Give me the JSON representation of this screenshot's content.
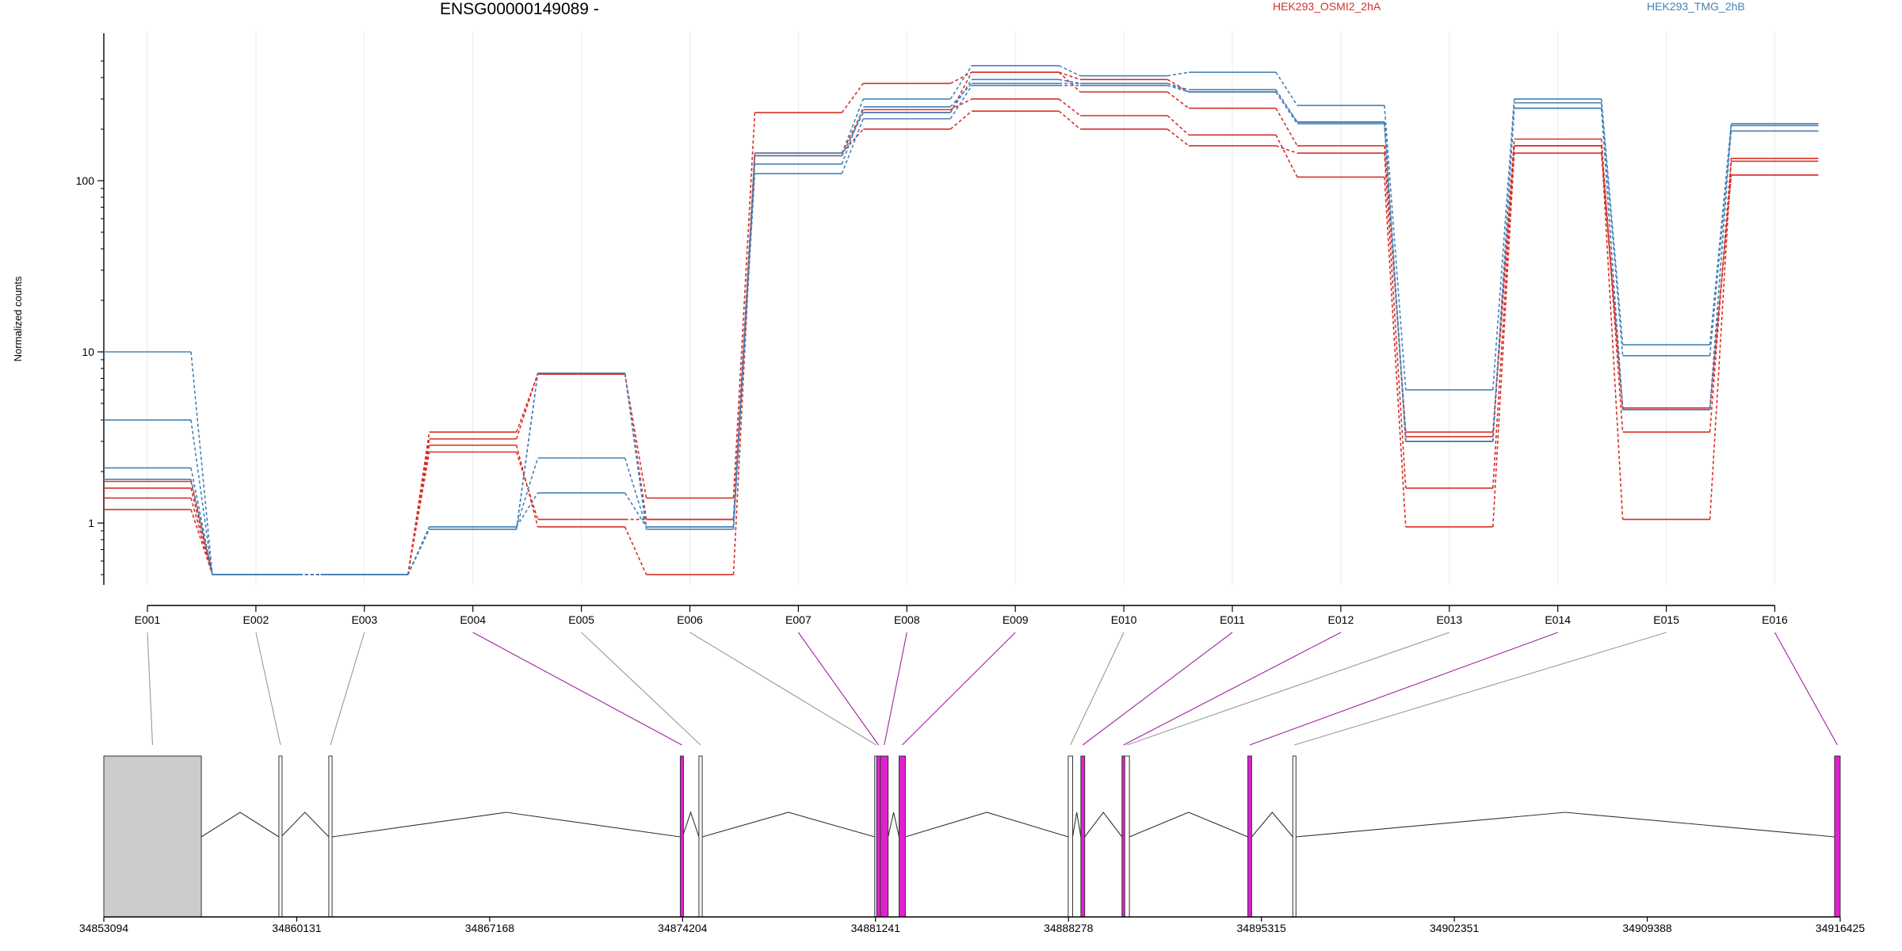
{
  "title": "ENSG00000149089 -",
  "colors": {
    "HEK293_OSMI2_2hA": "#d73027",
    "HEK293_TMG_2hB": "#4682b4",
    "exon_highlight": "#e020d0",
    "exon_plain": "#ffffff",
    "utr_fill": "#cccccc"
  },
  "chart_data": {
    "type": "line",
    "title": "ENSG00000149089 -",
    "ylabel": "Normalized counts",
    "yscale": "log",
    "yticks": [
      1,
      10,
      100
    ],
    "ytick_labels": [
      "1",
      "10",
      "100"
    ],
    "categories": [
      "E001",
      "E002",
      "E003",
      "E004",
      "E005",
      "E006",
      "E007",
      "E008",
      "E009",
      "E010",
      "E011",
      "E012",
      "E013",
      "E014",
      "E015",
      "E016"
    ],
    "legend": [
      "HEK293_OSMI2_2hA",
      "HEK293_TMG_2hB"
    ],
    "legend_position": "top",
    "grid": "vertical",
    "series": [
      {
        "name": "HEK293_OSMI2_2hA",
        "values": [
          1.4,
          0.5,
          0.5,
          3.4,
          7.4,
          1.4,
          250,
          370,
          430,
          330,
          265,
          160,
          3.4,
          175,
          3.4,
          135
        ]
      },
      {
        "name": "HEK293_OSMI2_2hA",
        "values": [
          1.6,
          0.5,
          0.5,
          3.1,
          7.5,
          1.05,
          145,
          200,
          255,
          200,
          160,
          145,
          1.6,
          160,
          1.05,
          130
        ]
      },
      {
        "name": "HEK293_OSMI2_2hA",
        "values": [
          1.75,
          0.5,
          0.5,
          2.85,
          0.95,
          0.5,
          145,
          260,
          300,
          240,
          185,
          105,
          0.95,
          145,
          4.6,
          108
        ]
      },
      {
        "name": "HEK293_OSMI2_2hA",
        "values": [
          1.2,
          0.5,
          0.5,
          2.6,
          1.05,
          1.05,
          140,
          250,
          430,
          390,
          330,
          220,
          3.2,
          160,
          4.7,
          108
        ]
      },
      {
        "name": "HEK293_TMG_2hB",
        "values": [
          10,
          0.5,
          0.5,
          0.95,
          2.4,
          0.95,
          145,
          300,
          470,
          410,
          430,
          275,
          6,
          300,
          11,
          215
        ]
      },
      {
        "name": "HEK293_TMG_2hB",
        "values": [
          4,
          0.5,
          0.5,
          0.95,
          1.5,
          0.95,
          125,
          270,
          370,
          370,
          340,
          220,
          3.0,
          285,
          9.5,
          195
        ]
      },
      {
        "name": "HEK293_TMG_2hB",
        "values": [
          2.1,
          0.5,
          0.5,
          0.92,
          7.5,
          0.92,
          110,
          230,
          360,
          360,
          330,
          215,
          3.0,
          265,
          4.6,
          210
        ]
      },
      {
        "name": "HEK293_TMG_2hB",
        "values": [
          1.8,
          0.5,
          0.5,
          0.92,
          7.5,
          0.95,
          140,
          250,
          390,
          370,
          330,
          220,
          3.0,
          265,
          4.6,
          215
        ]
      }
    ],
    "genomic_axis": {
      "ticks": [
        34853094,
        34860131,
        34867168,
        34874204,
        34881241,
        34888278,
        34895315,
        34902351,
        34909388,
        34916425
      ],
      "tick_labels": [
        "34853094",
        "34860131",
        "34867168",
        "34874204",
        "34881241",
        "34888278",
        "34895315",
        "34902351",
        "34909388",
        "34916425"
      ],
      "range": [
        34853094,
        34916425
      ]
    },
    "exons": [
      {
        "id": "E001",
        "start": 34853094,
        "end": 34856650,
        "style": "utr"
      },
      {
        "id": "E002",
        "start": 34859480,
        "end": 34859560,
        "style": "plain"
      },
      {
        "id": "E003",
        "start": 34861300,
        "end": 34861420,
        "style": "plain"
      },
      {
        "id": "E004",
        "start": 34874120,
        "end": 34874200,
        "style": "highlight"
      },
      {
        "id": "E005",
        "start": 34874800,
        "end": 34874920,
        "style": "plain"
      },
      {
        "id": "E006",
        "start": 34881210,
        "end": 34881280,
        "style": "plain"
      },
      {
        "id": "E007",
        "start": 34881280,
        "end": 34881420,
        "style": "highlight"
      },
      {
        "id": "E008",
        "start": 34881420,
        "end": 34881700,
        "style": "highlight"
      },
      {
        "id": "E009",
        "start": 34882100,
        "end": 34882330,
        "style": "highlight"
      },
      {
        "id": "E010",
        "start": 34888270,
        "end": 34888430,
        "style": "plain"
      },
      {
        "id": "E011",
        "start": 34888730,
        "end": 34888870,
        "style": "highlight"
      },
      {
        "id": "E012",
        "start": 34890230,
        "end": 34890330,
        "style": "highlight"
      },
      {
        "id": "E013",
        "start": 34890330,
        "end": 34890500,
        "style": "plain"
      },
      {
        "id": "E014",
        "start": 34894820,
        "end": 34894960,
        "style": "highlight"
      },
      {
        "id": "E015",
        "start": 34896460,
        "end": 34896560,
        "style": "plain"
      },
      {
        "id": "E016",
        "start": 34916220,
        "end": 34916425,
        "style": "highlight"
      }
    ]
  }
}
